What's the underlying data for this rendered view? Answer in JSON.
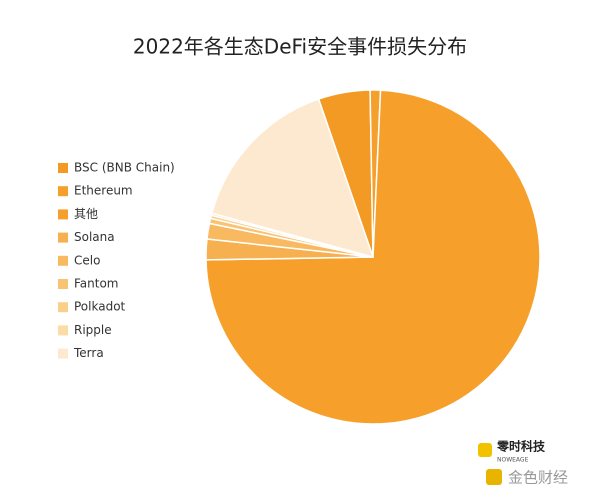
{
  "chart_data": {
    "type": "pie",
    "title": "2022年各生态DeFi安全事件损失分布",
    "categories": [
      "BSC (BNB Chain)",
      "Ethereum",
      "其他",
      "Solana",
      "Celo",
      "Fantom",
      "Polkadot",
      "Ripple",
      "Terra"
    ],
    "values": [
      5,
      1,
      74,
      2,
      1.5,
      0.5,
      0.3,
      0.2,
      15.5
    ],
    "colors": [
      "#f39a24",
      "#f5a02c",
      "#f6a02b",
      "#f7b04f",
      "#f8b961",
      "#f9c374",
      "#fad089",
      "#fbdca6",
      "#fde9cf"
    ],
    "legend": "left"
  },
  "watermarks": {
    "brand": "零时科技",
    "brand_sub": "NOWEAGE",
    "source": "金色财经"
  }
}
